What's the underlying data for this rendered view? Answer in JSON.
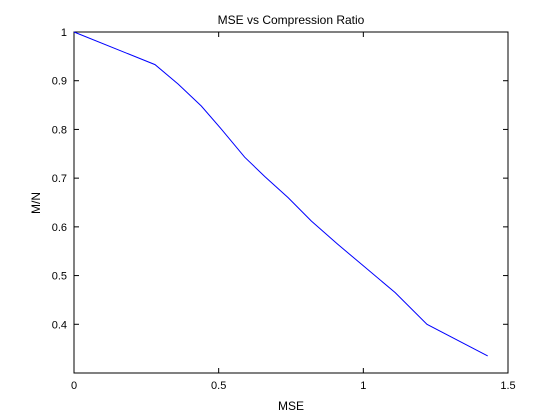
{
  "chart_data": {
    "type": "line",
    "title": "MSE vs Compression Ratio",
    "xlabel": "MSE",
    "ylabel": "M/N",
    "xlim": [
      0,
      1.5
    ],
    "ylim": [
      0.3,
      1.0
    ],
    "xticks": [
      0,
      0.5,
      1,
      1.5
    ],
    "xtick_labels": [
      "0",
      "0.5",
      "1",
      "1.5"
    ],
    "yticks": [
      0.4,
      0.5,
      0.6,
      0.7,
      0.8,
      0.9,
      1.0
    ],
    "ytick_labels": [
      "0.4",
      "0.5",
      "0.6",
      "0.7",
      "0.8",
      "0.9",
      "1"
    ],
    "grid": false,
    "series": [
      {
        "color": "#0000ff",
        "x": [
          0,
          0.28,
          0.36,
          0.44,
          0.51,
          0.59,
          0.66,
          0.74,
          0.82,
          0.91,
          1.0,
          1.11,
          1.22,
          1.43
        ],
        "y": [
          1.0,
          0.933,
          0.893,
          0.848,
          0.8,
          0.743,
          0.703,
          0.66,
          0.612,
          0.565,
          0.52,
          0.465,
          0.4,
          0.335
        ]
      }
    ]
  }
}
